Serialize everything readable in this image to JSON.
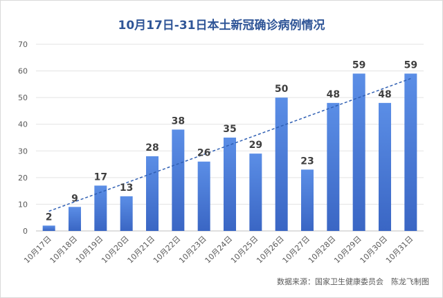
{
  "chart_data": {
    "type": "bar",
    "title": "10月17日-31日本土新冠确诊病例情况",
    "categories": [
      "10月17日",
      "10月18日",
      "10月19日",
      "10月20日",
      "10月21日",
      "10月22日",
      "10月23日",
      "10月24日",
      "10月25日",
      "10月26日",
      "10月27日",
      "10月28日",
      "10月29日",
      "10月30日",
      "10月31日"
    ],
    "series": [
      {
        "values": [
          2,
          9,
          17,
          13,
          28,
          38,
          26,
          35,
          29,
          50,
          23,
          48,
          59,
          48,
          59
        ]
      }
    ],
    "ylim": [
      0,
      70
    ],
    "yticks": [
      0,
      10,
      20,
      30,
      40,
      50,
      60,
      70
    ],
    "grid": true,
    "trendline": "linear",
    "colors": {
      "bar_top": "#5b8ee6",
      "bar_bottom": "#3a66c4",
      "trend": "#2f5fb3",
      "label": "#404040"
    }
  },
  "source": "数据来源：国家卫生健康委员会　陈龙飞制图"
}
